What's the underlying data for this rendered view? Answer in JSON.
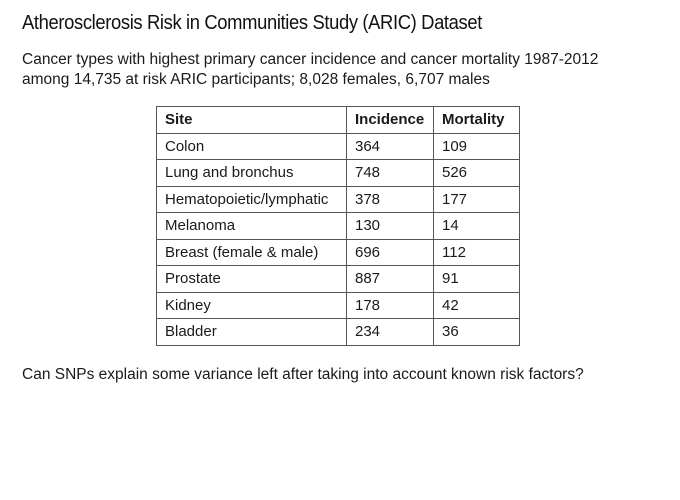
{
  "slide": {
    "title": "Atherosclerosis Risk in Communities Study (ARIC) Dataset",
    "subtitle_lines": [
      "Cancer types with highest primary cancer incidence and cancer mortality 1987-2012",
      "among 14,735 at risk ARIC participants; 8,028 females, 6,707 males"
    ],
    "question": "Can SNPs explain some variance left after taking into account known risk factors?"
  },
  "table": {
    "headers": [
      "Site",
      "Incidence",
      "Mortality"
    ],
    "rows": [
      [
        "Colon",
        "364",
        "109"
      ],
      [
        "Lung and bronchus",
        "748",
        "526"
      ],
      [
        "Hematopoietic/lymphatic",
        "378",
        "177"
      ],
      [
        "Melanoma",
        "130",
        "14"
      ],
      [
        "Breast (female & male)",
        "696",
        "112"
      ],
      [
        "Prostate",
        "887",
        "91"
      ],
      [
        "Kidney",
        "178",
        "42"
      ],
      [
        "Bladder",
        "234",
        "36"
      ]
    ]
  }
}
